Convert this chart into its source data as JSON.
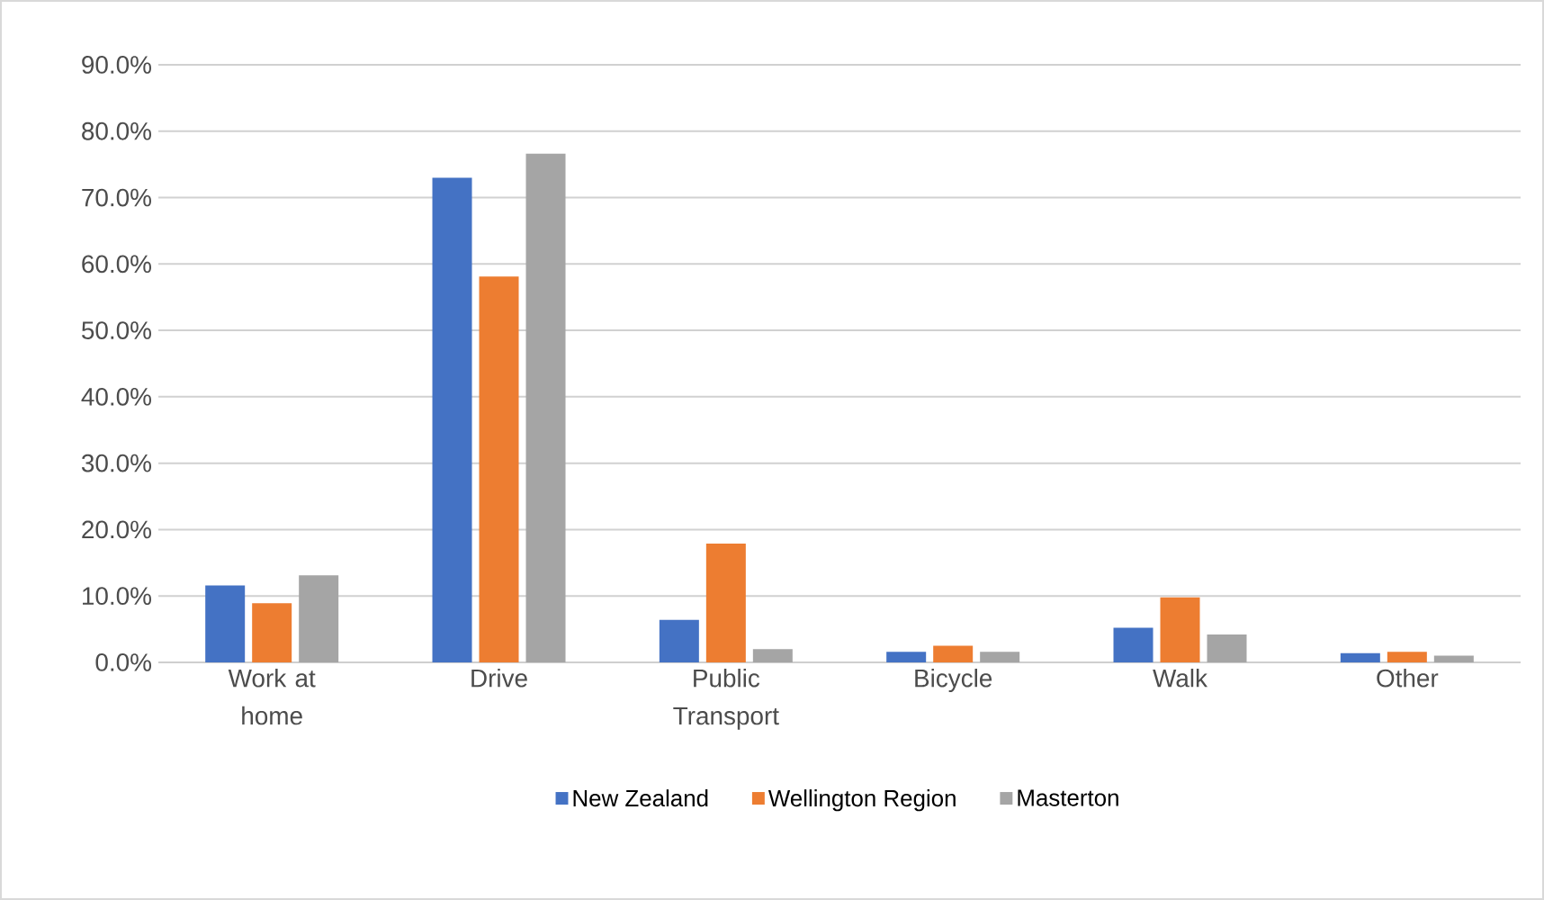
{
  "chart_data": {
    "type": "bar",
    "categories": [
      "Work at home",
      "Drive",
      "Public Transport",
      "Bicycle",
      "Walk",
      "Other"
    ],
    "series": [
      {
        "name": "New Zealand",
        "color": "#4472c4",
        "values": [
          11.6,
          73.0,
          6.4,
          1.6,
          5.2,
          1.4
        ]
      },
      {
        "name": "Wellington Region",
        "color": "#ed7d31",
        "values": [
          8.9,
          58.1,
          17.9,
          2.5,
          9.8,
          1.6
        ]
      },
      {
        "name": "Masterton",
        "color": "#a5a5a5",
        "values": [
          13.1,
          76.6,
          2.0,
          1.6,
          4.2,
          1.0
        ]
      }
    ],
    "ylim": [
      0,
      90
    ],
    "yticks": [
      {
        "value": 0,
        "label": "0.0%"
      },
      {
        "value": 10,
        "label": "10.0%"
      },
      {
        "value": 20,
        "label": "20.0%"
      },
      {
        "value": 30,
        "label": "30.0%"
      },
      {
        "value": 40,
        "label": "40.0%"
      },
      {
        "value": 50,
        "label": "50.0%"
      },
      {
        "value": 60,
        "label": "60.0%"
      },
      {
        "value": 70,
        "label": "70.0%"
      },
      {
        "value": 80,
        "label": "80.0%"
      },
      {
        "value": 90,
        "label": "90.0%"
      }
    ],
    "grid": "y",
    "legend": "bottom"
  }
}
